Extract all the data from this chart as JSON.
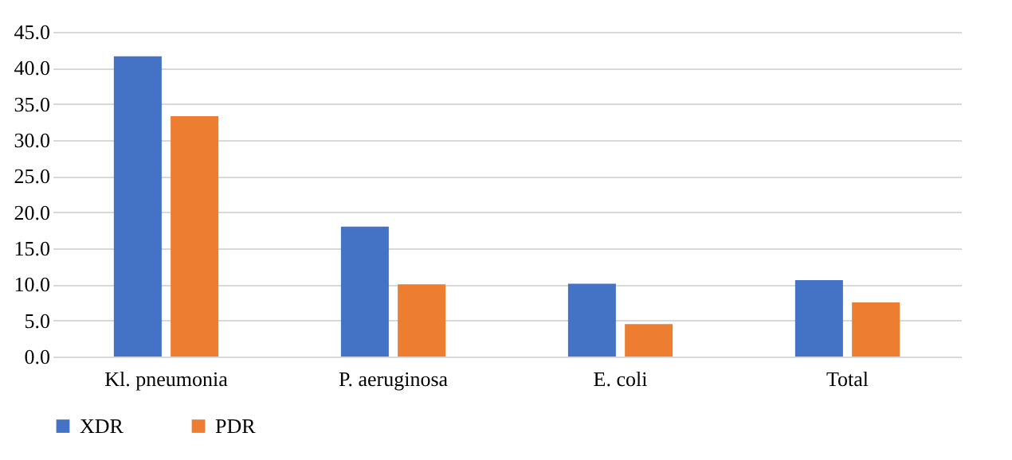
{
  "chart_data": {
    "type": "bar",
    "categories": [
      "Kl. pneumonia",
      "P. aeruginosa",
      "E. coli",
      "Total"
    ],
    "series": [
      {
        "name": "XDR",
        "color": "#4472c4",
        "values": [
          41.6,
          18.0,
          10.1,
          10.6
        ]
      },
      {
        "name": "PDR",
        "color": "#ed7d31",
        "values": [
          33.3,
          10.0,
          4.5,
          7.5
        ]
      }
    ],
    "ylim": [
      0,
      45
    ],
    "yticks": [
      {
        "value": 0,
        "label": "0.0"
      },
      {
        "value": 5,
        "label": "5.0"
      },
      {
        "value": 10,
        "label": "10.0"
      },
      {
        "value": 15,
        "label": "15.0"
      },
      {
        "value": 20,
        "label": "20.0"
      },
      {
        "value": 25,
        "label": "25.0"
      },
      {
        "value": 30,
        "label": "30.0"
      },
      {
        "value": 35,
        "label": "35.0"
      },
      {
        "value": 40,
        "label": "40.0"
      },
      {
        "value": 45,
        "label": "45.0"
      }
    ],
    "grid": "y",
    "legend": "bottom"
  }
}
